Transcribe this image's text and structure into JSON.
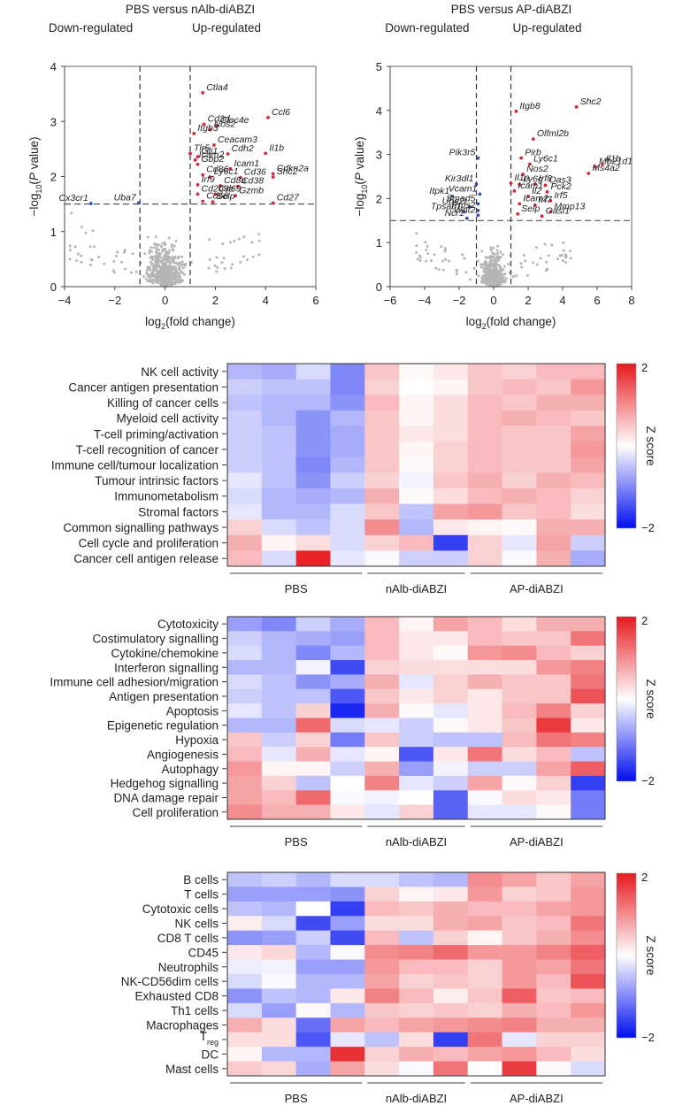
{
  "chart_data": [
    {
      "type": "scatter",
      "title": "PBS versus nAlb-diABZI",
      "left_annotation": "Down-regulated",
      "right_annotation": "Up-regulated",
      "xlabel": "log2(fold change)",
      "ylabel": "-log10(P value)",
      "xlim": [
        -4,
        6
      ],
      "ylim": [
        0,
        4
      ],
      "xticks": [
        "-4",
        "-2",
        "0",
        "2",
        "4",
        "6"
      ],
      "yticks": [
        "0",
        "1",
        "2",
        "3",
        "4"
      ],
      "thresholds": {
        "fold_change": [
          -1,
          1
        ],
        "p": 1.5
      },
      "colors": {
        "up": "#d6283c",
        "down": "#3a4fa8",
        "ns": "#b5b5b5"
      },
      "labeled_points": [
        {
          "gene": "Ctla4",
          "x": 1.5,
          "y": 3.52,
          "dir": "up"
        },
        {
          "gene": "Ccl6",
          "x": 4.1,
          "y": 3.07,
          "dir": "up"
        },
        {
          "gene": "Cd3d",
          "x": 1.55,
          "y": 2.95,
          "dir": "up"
        },
        {
          "gene": "Clec4e",
          "x": 2.05,
          "y": 2.92,
          "dir": "up"
        },
        {
          "gene": "Nos2",
          "x": 1.8,
          "y": 2.85,
          "dir": "up"
        },
        {
          "gene": "Itgb3",
          "x": 1.15,
          "y": 2.78,
          "dir": "up"
        },
        {
          "gene": "Ceacam3",
          "x": 1.95,
          "y": 2.57,
          "dir": "up"
        },
        {
          "gene": "Tlr5",
          "x": 1.0,
          "y": 2.42,
          "dir": "up"
        },
        {
          "gene": "Gli1",
          "x": 1.3,
          "y": 2.36,
          "dir": "up"
        },
        {
          "gene": "Cdh2",
          "x": 2.5,
          "y": 2.41,
          "dir": "up"
        },
        {
          "gene": "Il1b",
          "x": 4.0,
          "y": 2.42,
          "dir": "up"
        },
        {
          "gene": "Icam2",
          "x": 1.2,
          "y": 2.3,
          "dir": "up"
        },
        {
          "gene": "Gbp2",
          "x": 1.3,
          "y": 2.22,
          "dir": "up"
        },
        {
          "gene": "Icam1",
          "x": 2.6,
          "y": 2.14,
          "dir": "up"
        },
        {
          "gene": "Cdkn2a",
          "x": 4.3,
          "y": 2.05,
          "dir": "up"
        },
        {
          "gene": "Cd86",
          "x": 1.5,
          "y": 2.03,
          "dir": "up"
        },
        {
          "gene": "Ly6c1",
          "x": 1.8,
          "y": 1.99,
          "dir": "up"
        },
        {
          "gene": "Cd36",
          "x": 3.0,
          "y": 1.98,
          "dir": "up"
        },
        {
          "gene": "Shc2",
          "x": 4.3,
          "y": 1.99,
          "dir": "up"
        },
        {
          "gene": "Irf9",
          "x": 1.3,
          "y": 1.85,
          "dir": "up"
        },
        {
          "gene": "Cd8a",
          "x": 2.2,
          "y": 1.83,
          "dir": "up"
        },
        {
          "gene": "Cd38",
          "x": 2.9,
          "y": 1.82,
          "dir": "up"
        },
        {
          "gene": "Cd209e",
          "x": 1.3,
          "y": 1.68,
          "dir": "up"
        },
        {
          "gene": "Cd69",
          "x": 2.0,
          "y": 1.68,
          "dir": "up"
        },
        {
          "gene": "Gzmb",
          "x": 2.8,
          "y": 1.65,
          "dir": "up"
        },
        {
          "gene": "Cd68",
          "x": 1.5,
          "y": 1.55,
          "dir": "up"
        },
        {
          "gene": "Selp",
          "x": 1.9,
          "y": 1.54,
          "dir": "up"
        },
        {
          "gene": "Cd27",
          "x": 4.3,
          "y": 1.52,
          "dir": "up"
        },
        {
          "gene": "Cx3cr1",
          "x": -2.95,
          "y": 1.51,
          "dir": "down"
        },
        {
          "gene": "Uba7",
          "x": -1.05,
          "y": 1.52,
          "dir": "down"
        }
      ]
    },
    {
      "type": "scatter",
      "title": "PBS versus AP-diABZI",
      "left_annotation": "Down-regulated",
      "right_annotation": "Up-regulated",
      "xlabel": "log2(fold change)",
      "ylabel": "-log10(P value)",
      "xlim": [
        -6,
        8
      ],
      "ylim": [
        0,
        5
      ],
      "xticks": [
        "-6",
        "-4",
        "-2",
        "0",
        "2",
        "4",
        "6",
        "8"
      ],
      "yticks": [
        "0",
        "1",
        "2",
        "3",
        "4",
        "5"
      ],
      "thresholds": {
        "fold_change": [
          -1,
          1
        ],
        "p": 1.5
      },
      "colors": {
        "up": "#d6283c",
        "down": "#3a4fa8",
        "ns": "#b5b5b5"
      },
      "labeled_points": [
        {
          "gene": "Shc2",
          "x": 4.8,
          "y": 4.08,
          "dir": "up"
        },
        {
          "gene": "Itgb8",
          "x": 1.3,
          "y": 3.98,
          "dir": "up"
        },
        {
          "gene": "Olfml2b",
          "x": 2.3,
          "y": 3.35,
          "dir": "up"
        },
        {
          "gene": "Pirb",
          "x": 1.6,
          "y": 2.92,
          "dir": "up"
        },
        {
          "gene": "Ly6c1",
          "x": 2.1,
          "y": 2.78,
          "dir": "up"
        },
        {
          "gene": "Mb21d1",
          "x": 5.9,
          "y": 2.72,
          "dir": "up"
        },
        {
          "gene": "Il1b",
          "x": 6.3,
          "y": 2.78,
          "dir": "up"
        },
        {
          "gene": "Nos2",
          "x": 1.7,
          "y": 2.55,
          "dir": "up"
        },
        {
          "gene": "Ms4a2",
          "x": 5.5,
          "y": 2.57,
          "dir": "up"
        },
        {
          "gene": "Il1a",
          "x": 1.0,
          "y": 2.35,
          "dir": "up"
        },
        {
          "gene": "Ly6g",
          "x": 1.5,
          "y": 2.32,
          "dir": "up"
        },
        {
          "gene": "Irf8",
          "x": 2.4,
          "y": 2.33,
          "dir": "up"
        },
        {
          "gene": "Oas3",
          "x": 3.0,
          "y": 2.3,
          "dir": "up"
        },
        {
          "gene": "Icam1",
          "x": 1.2,
          "y": 2.17,
          "dir": "up"
        },
        {
          "gene": "Pck2",
          "x": 3.1,
          "y": 2.15,
          "dir": "up"
        },
        {
          "gene": "Il2",
          "x": 2.0,
          "y": 2.05,
          "dir": "up"
        },
        {
          "gene": "Irf5",
          "x": 3.3,
          "y": 1.95,
          "dir": "up"
        },
        {
          "gene": "Icam2",
          "x": 1.5,
          "y": 1.88,
          "dir": "up"
        },
        {
          "gene": "Irf7",
          "x": 2.4,
          "y": 1.85,
          "dir": "up"
        },
        {
          "gene": "Mmp13",
          "x": 3.3,
          "y": 1.7,
          "dir": "up"
        },
        {
          "gene": "Selp",
          "x": 1.4,
          "y": 1.65,
          "dir": "up"
        },
        {
          "gene": "Oasl1",
          "x": 2.8,
          "y": 1.6,
          "dir": "up"
        },
        {
          "gene": "Pik3r5",
          "x": -0.9,
          "y": 2.92,
          "dir": "down"
        },
        {
          "gene": "Kir3dl1",
          "x": -1.0,
          "y": 2.33,
          "dir": "down"
        },
        {
          "gene": "Vcam1",
          "x": -0.8,
          "y": 2.1,
          "dir": "down"
        },
        {
          "gene": "Itpk1",
          "x": -2.4,
          "y": 2.05,
          "dir": "down"
        },
        {
          "gene": "Smad5",
          "x": -0.9,
          "y": 1.88,
          "dir": "down"
        },
        {
          "gene": "Ube2t",
          "x": -1.4,
          "y": 1.82,
          "dir": "down"
        },
        {
          "gene": "Pms2",
          "x": -0.9,
          "y": 1.73,
          "dir": "down"
        },
        {
          "gene": "Tpsab1",
          "x": -1.7,
          "y": 1.7,
          "dir": "down"
        },
        {
          "gene": "Ncr1",
          "x": -1.55,
          "y": 1.55,
          "dir": "down"
        },
        {
          "gene": "Wnt2",
          "x": -0.9,
          "y": 1.62,
          "dir": "down"
        }
      ]
    },
    {
      "type": "heatmap",
      "title": "",
      "colorbar": {
        "label": "Z score",
        "min": -2,
        "max": 2,
        "ticks": [
          "2",
          "−2"
        ]
      },
      "groups": [
        {
          "name": "PBS",
          "n": 4
        },
        {
          "name": "nAlb-diABZI",
          "n": 3
        },
        {
          "name": "AP-diABZI",
          "n": 4
        }
      ],
      "rows": [
        "NK cell activity",
        "Cancer antigen presentation",
        "Killing of cancer cells",
        "Myeloid cell activity",
        "T-cell priming/activation",
        "T-cell recognition of cancer",
        "Immune cell/tumour localization",
        "Tumour intrinsic factors",
        "Immunometabolism",
        "Stromal factors",
        "Common signalling pathways",
        "Cell cycle and proliferation",
        "Cancer cell antigen release"
      ],
      "values": [
        [
          -0.6,
          -0.7,
          -0.3,
          -1.0,
          0.5,
          0.05,
          0.2,
          0.5,
          0.4,
          0.6,
          0.6
        ],
        [
          -0.4,
          -0.5,
          -0.5,
          -1.0,
          0.4,
          0.0,
          0.1,
          0.5,
          0.6,
          0.5,
          0.9
        ],
        [
          -0.5,
          -0.6,
          -0.6,
          -0.9,
          0.6,
          0.1,
          0.3,
          0.6,
          0.5,
          0.7,
          0.7
        ],
        [
          -0.4,
          -0.6,
          -0.9,
          -0.6,
          0.5,
          0.1,
          0.3,
          0.6,
          0.7,
          0.6,
          0.5
        ],
        [
          -0.4,
          -0.5,
          -0.9,
          -0.7,
          0.5,
          0.2,
          0.3,
          0.6,
          0.5,
          0.5,
          0.8
        ],
        [
          -0.4,
          -0.5,
          -0.9,
          -0.7,
          0.5,
          0.1,
          0.4,
          0.6,
          0.5,
          0.5,
          0.9
        ],
        [
          -0.4,
          -0.5,
          -1.0,
          -0.6,
          0.5,
          0.05,
          0.4,
          0.6,
          0.5,
          0.5,
          0.8
        ],
        [
          -0.2,
          -0.5,
          -0.9,
          -0.4,
          0.4,
          -0.1,
          0.5,
          0.7,
          0.4,
          0.7,
          0.6
        ],
        [
          -0.3,
          -0.6,
          -0.7,
          -0.6,
          0.7,
          0.05,
          0.3,
          0.6,
          0.7,
          0.6,
          0.4
        ],
        [
          -0.2,
          -0.6,
          -0.6,
          -0.3,
          0.5,
          -0.5,
          0.8,
          0.9,
          0.5,
          0.6,
          0.3
        ],
        [
          0.4,
          -0.3,
          -0.5,
          -0.3,
          1.0,
          -0.6,
          0.2,
          0.1,
          0.05,
          0.7,
          0.7
        ],
        [
          0.7,
          0.1,
          0.3,
          -0.3,
          0.4,
          0.6,
          -1.6,
          0.4,
          -0.2,
          0.8,
          -0.4
        ],
        [
          0.6,
          -0.3,
          1.9,
          -0.2,
          -0.05,
          -0.4,
          -0.4,
          0.4,
          -0.05,
          0.7,
          -0.7
        ]
      ]
    },
    {
      "type": "heatmap",
      "title": "",
      "colorbar": {
        "label": "Z score",
        "min": -2,
        "max": 2,
        "ticks": [
          "2",
          "−2"
        ]
      },
      "groups": [
        {
          "name": "PBS",
          "n": 4
        },
        {
          "name": "nAlb-diABZI",
          "n": 3
        },
        {
          "name": "AP-diABZI",
          "n": 4
        }
      ],
      "rows": [
        "Cytotoxicity",
        "Costimulatory signalling",
        "Cytokine/chemokine",
        "Interferon signalling",
        "Immune cell adhesion/migration",
        "Antigen presentation",
        "Apoptosis",
        "Epigenetic regulation",
        "Hypoxia",
        "Angiogenesis",
        "Autophagy",
        "Hedgehog signalling",
        "DNA damage repair",
        "Cell proliferation"
      ],
      "values": [
        [
          -0.8,
          -1.0,
          -0.4,
          -0.7,
          0.6,
          0.1,
          0.8,
          0.6,
          0.3,
          0.7,
          0.7
        ],
        [
          -0.4,
          -0.6,
          -0.7,
          -0.8,
          0.6,
          0.2,
          0.2,
          0.6,
          0.5,
          0.5,
          1.2
        ],
        [
          -0.3,
          -0.6,
          -1.0,
          -0.6,
          0.6,
          0.2,
          0.05,
          0.9,
          1.0,
          0.6,
          0.4
        ],
        [
          -0.6,
          -0.6,
          -0.1,
          -1.5,
          0.4,
          0.3,
          0.3,
          0.3,
          0.3,
          0.9,
          1.1
        ],
        [
          -0.3,
          -0.5,
          -0.9,
          -0.7,
          0.7,
          -0.2,
          0.4,
          0.7,
          0.5,
          0.5,
          1.2
        ],
        [
          -0.4,
          -0.5,
          -0.5,
          -1.4,
          0.5,
          0.2,
          0.4,
          0.2,
          0.5,
          0.5,
          1.5
        ],
        [
          -0.2,
          -0.5,
          0.4,
          -1.8,
          0.7,
          0.05,
          -0.2,
          0.2,
          0.6,
          1.1,
          0.4
        ],
        [
          -0.6,
          -0.6,
          1.3,
          -0.3,
          -0.2,
          -0.4,
          0.05,
          0.2,
          0.5,
          1.7,
          0.2
        ],
        [
          0.5,
          -0.4,
          0.4,
          -1.1,
          0.5,
          -0.4,
          -0.5,
          -0.5,
          0.6,
          1.2,
          1.1
        ],
        [
          0.6,
          -0.2,
          0.7,
          -0.2,
          0.1,
          -1.4,
          0.2,
          1.2,
          0.3,
          0.6,
          -0.5
        ],
        [
          0.9,
          0.1,
          0.1,
          -0.4,
          0.7,
          -0.8,
          -0.1,
          -0.4,
          -0.4,
          0.8,
          1.4
        ],
        [
          0.8,
          0.4,
          -0.5,
          0.0,
          1.1,
          -0.2,
          -0.4,
          0.8,
          0.05,
          0.4,
          -1.6
        ],
        [
          0.8,
          0.6,
          1.3,
          -0.05,
          -0.1,
          0.0,
          -1.3,
          -0.05,
          0.3,
          0.2,
          -1.1
        ],
        [
          1.0,
          0.7,
          0.7,
          0.2,
          -0.2,
          0.4,
          -1.3,
          -0.2,
          -0.2,
          0.05,
          -1.1
        ]
      ]
    },
    {
      "type": "heatmap",
      "title": "",
      "colorbar": {
        "label": "Z score",
        "min": -2,
        "max": 2,
        "ticks": [
          "2",
          "−2"
        ]
      },
      "groups": [
        {
          "name": "PBS",
          "n": 4
        },
        {
          "name": "nAlb-diABZI",
          "n": 3
        },
        {
          "name": "AP-diABZI",
          "n": 4
        }
      ],
      "rows": [
        "B cells",
        "T cells",
        "Cytotoxic cells",
        "NK cells",
        "CD8 T cells",
        "CD45",
        "Neutrophils",
        "NK-CD56dim cells",
        "Exhausted CD8",
        "Th1 cells",
        "Macrophages",
        "Treg",
        "DC",
        "Mast cells"
      ],
      "values": [
        [
          -0.5,
          -0.4,
          -0.6,
          -0.3,
          -0.3,
          -0.5,
          -0.6,
          1.0,
          0.8,
          0.5,
          0.8
        ],
        [
          -0.8,
          -0.8,
          -0.8,
          -0.9,
          0.4,
          0.1,
          0.2,
          0.9,
          0.4,
          0.5,
          0.9
        ],
        [
          -0.5,
          -0.6,
          0.0,
          -1.6,
          0.6,
          0.5,
          0.7,
          0.6,
          0.6,
          0.8,
          0.9
        ],
        [
          0.15,
          -0.3,
          -1.5,
          -0.8,
          0.3,
          0.3,
          0.7,
          0.8,
          0.5,
          0.6,
          1.2
        ],
        [
          -0.9,
          -0.8,
          -0.4,
          -1.5,
          0.6,
          -0.5,
          0.4,
          0.1,
          0.5,
          0.7,
          1.0
        ],
        [
          0.2,
          0.35,
          -0.6,
          -0.05,
          1.0,
          1.1,
          1.3,
          0.9,
          0.9,
          1.1,
          1.4
        ],
        [
          -0.15,
          -0.1,
          -0.8,
          -0.8,
          0.9,
          0.6,
          0.6,
          0.4,
          0.9,
          0.8,
          1.2
        ],
        [
          -0.3,
          -0.05,
          -0.6,
          -0.6,
          0.8,
          0.4,
          0.5,
          0.4,
          0.9,
          0.6,
          1.5
        ],
        [
          -0.9,
          -0.5,
          -0.6,
          0.2,
          1.1,
          0.6,
          0.15,
          0.5,
          1.4,
          0.5,
          0.6
        ],
        [
          -0.3,
          -0.8,
          0.05,
          -0.6,
          0.5,
          0.4,
          0.5,
          0.4,
          0.7,
          0.6,
          0.9
        ],
        [
          0.7,
          0.3,
          -1.2,
          0.8,
          0.6,
          0.8,
          0.9,
          1.0,
          1.1,
          0.7,
          0.7
        ],
        [
          0.3,
          0.3,
          -1.4,
          -0.2,
          -0.5,
          0.3,
          -1.6,
          1.2,
          -0.2,
          0.4,
          0.4
        ],
        [
          0.1,
          -0.6,
          -0.6,
          1.8,
          0.4,
          0.7,
          0.6,
          0.8,
          0.9,
          0.6,
          0.3
        ],
        [
          0.45,
          0.35,
          -0.7,
          0.8,
          0.3,
          -0.05,
          1.2,
          0.0,
          1.7,
          0.05,
          -0.3
        ]
      ]
    }
  ]
}
